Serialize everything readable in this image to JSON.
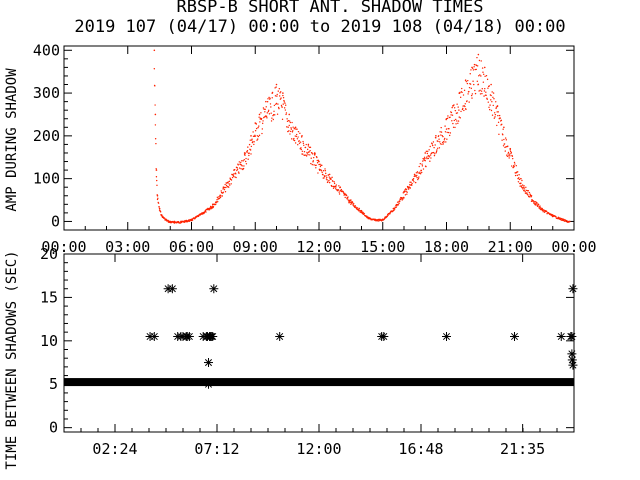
{
  "title": "RBSP-B SHORT ANT. SHADOW TIMES",
  "subtitle": "2019 107 (04/17) 00:00 to 2019 108 (04/18) 00:00",
  "colors": {
    "top_series": "#ff2200",
    "bottom_series": "#000000",
    "axes": "#000000"
  },
  "chart_data": [
    {
      "type": "scatter",
      "ylabel": "AMP DURING SHADOW",
      "xlabel": "",
      "xlim": [
        0,
        24
      ],
      "ylim": [
        -20,
        410
      ],
      "x_tick_labels": [
        "00:00",
        "03:00",
        "06:00",
        "09:00",
        "12:00",
        "15:00",
        "18:00",
        "21:00",
        "00:00"
      ],
      "y_tick_labels": [
        "0",
        "100",
        "200",
        "300",
        "400"
      ],
      "y_ticks": [
        0,
        100,
        200,
        300,
        400
      ],
      "series": [
        {
          "marker": "dot",
          "x": [
            4.25,
            4.3,
            4.35,
            4.4,
            4.5,
            4.6,
            4.8,
            5.0,
            5.2,
            5.5,
            6.0,
            6.5,
            7.0,
            7.5,
            8.0,
            8.5,
            8.8,
            9.0,
            9.2,
            9.5,
            9.8,
            10.0,
            10.3,
            10.6,
            10.9,
            11.2,
            11.5,
            11.8,
            12.0,
            12.5,
            13.0,
            13.5,
            14.0,
            14.3,
            14.6,
            15.0,
            15.5,
            16.0,
            16.5,
            17.0,
            17.5,
            18.0,
            18.3,
            18.6,
            18.9,
            19.2,
            19.5,
            19.8,
            20.1,
            20.4,
            20.7,
            21.0,
            21.5,
            22.0,
            22.5,
            23.0,
            23.5,
            23.8
          ],
          "y": [
            400,
            250,
            120,
            60,
            30,
            15,
            5,
            0,
            0,
            0,
            5,
            20,
            40,
            80,
            120,
            160,
            200,
            230,
            250,
            280,
            300,
            320,
            300,
            250,
            220,
            200,
            180,
            160,
            140,
            110,
            80,
            50,
            25,
            10,
            5,
            5,
            30,
            70,
            110,
            160,
            200,
            240,
            270,
            300,
            330,
            360,
            390,
            360,
            320,
            270,
            220,
            170,
            100,
            60,
            30,
            15,
            5,
            0
          ]
        }
      ]
    },
    {
      "type": "scatter",
      "ylabel": "TIME BETWEEN SHADOWS (SEC)",
      "xlabel": "",
      "xlim": [
        0,
        24
      ],
      "ylim": [
        -0.5,
        20
      ],
      "x_tick_labels": [
        "02:24",
        "07:12",
        "12:00",
        "16:48",
        "21:35"
      ],
      "x_ticks": [
        2.4,
        7.2,
        12.0,
        16.8,
        21.583
      ],
      "y_tick_labels": [
        "0",
        "5",
        "10",
        "15",
        "20"
      ],
      "y_ticks": [
        0,
        5,
        10,
        15,
        20
      ],
      "series": [
        {
          "name_note_omitted": "",
          "marker": "asterisk",
          "baseline_value": 5.25,
          "baseline_x_range": [
            0,
            24
          ],
          "x": [
            4.05,
            4.25,
            4.9,
            5.1,
            5.35,
            5.5,
            5.6,
            5.75,
            5.8,
            5.9,
            6.55,
            6.7,
            6.75,
            6.85,
            6.9,
            6.95,
            7.0,
            7.05,
            6.8,
            6.8,
            10.15,
            14.95,
            15.05,
            18.0,
            21.2,
            23.4,
            23.85,
            23.9,
            23.95,
            23.9,
            23.92,
            23.95
          ],
          "y": [
            10.5,
            10.5,
            16.0,
            16.0,
            10.5,
            10.5,
            10.5,
            10.5,
            10.5,
            10.5,
            10.5,
            10.5,
            10.5,
            10.5,
            10.5,
            10.5,
            10.5,
            16.0,
            7.5,
            5.0,
            10.5,
            10.5,
            10.5,
            10.5,
            10.5,
            10.5,
            10.5,
            10.5,
            16.0,
            8.5,
            7.8,
            7.2
          ]
        }
      ]
    }
  ]
}
